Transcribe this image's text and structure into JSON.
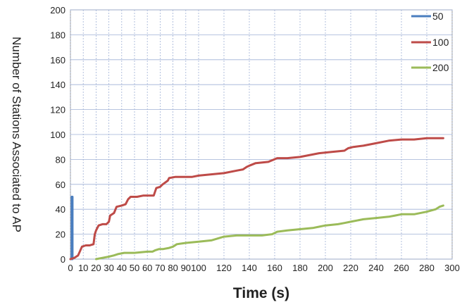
{
  "chart_data": {
    "type": "line",
    "title": "",
    "xlabel": "Time (s)",
    "ylabel": "Number of Stations Associated to AP",
    "xlim": [
      0,
      300
    ],
    "ylim": [
      0,
      200
    ],
    "xticks": [
      0,
      10,
      20,
      30,
      40,
      50,
      60,
      70,
      80,
      90,
      100,
      120,
      140,
      160,
      180,
      200,
      220,
      240,
      260,
      280,
      300
    ],
    "xtick_labels": [
      "0",
      "10",
      "20",
      "30",
      "40",
      "50",
      "60",
      "70",
      "80",
      "90",
      "100",
      "120",
      "140",
      "160",
      "180",
      "200",
      "220",
      "240",
      "260",
      "280",
      "300"
    ],
    "yticks": [
      0,
      20,
      40,
      60,
      80,
      100,
      120,
      140,
      160,
      180,
      200
    ],
    "ytick_labels": [
      "0",
      "20",
      "40",
      "60",
      "80",
      "100",
      "120",
      "140",
      "160",
      "180",
      "200"
    ],
    "grid": true,
    "legend_position": "top-right",
    "series": [
      {
        "name": "50",
        "color": "#4a7ebf",
        "points": [
          [
            0,
            0
          ],
          [
            1,
            0
          ],
          [
            1,
            50
          ],
          [
            1.6,
            50
          ],
          [
            1.6,
            0
          ]
        ]
      },
      {
        "name": "100",
        "color": "#be4b48",
        "points": [
          [
            0,
            0
          ],
          [
            3,
            1
          ],
          [
            6,
            3
          ],
          [
            9,
            10
          ],
          [
            12,
            11
          ],
          [
            15,
            11
          ],
          [
            18,
            12
          ],
          [
            19,
            20
          ],
          [
            20,
            23
          ],
          [
            22,
            27
          ],
          [
            25,
            28
          ],
          [
            28,
            28
          ],
          [
            30,
            30
          ],
          [
            31,
            35
          ],
          [
            34,
            37
          ],
          [
            36,
            42
          ],
          [
            40,
            43
          ],
          [
            43,
            44
          ],
          [
            45,
            48
          ],
          [
            47,
            50
          ],
          [
            52,
            50
          ],
          [
            57,
            51
          ],
          [
            63,
            51
          ],
          [
            65,
            51
          ],
          [
            67,
            57
          ],
          [
            70,
            58
          ],
          [
            72,
            60
          ],
          [
            76,
            63
          ],
          [
            77,
            65
          ],
          [
            82,
            66
          ],
          [
            88,
            66
          ],
          [
            95,
            66
          ],
          [
            100,
            67
          ],
          [
            110,
            68
          ],
          [
            120,
            69
          ],
          [
            130,
            71
          ],
          [
            135,
            72
          ],
          [
            138,
            74
          ],
          [
            140,
            75
          ],
          [
            145,
            77
          ],
          [
            155,
            78
          ],
          [
            162,
            81
          ],
          [
            170,
            81
          ],
          [
            180,
            82
          ],
          [
            185,
            83
          ],
          [
            195,
            85
          ],
          [
            205,
            86
          ],
          [
            215,
            87
          ],
          [
            218,
            89
          ],
          [
            222,
            90
          ],
          [
            230,
            91
          ],
          [
            240,
            93
          ],
          [
            250,
            95
          ],
          [
            260,
            96
          ],
          [
            270,
            96
          ],
          [
            280,
            97
          ],
          [
            290,
            97
          ],
          [
            293,
            97
          ]
        ]
      },
      {
        "name": "200",
        "color": "#9bbb59",
        "points": [
          [
            20,
            0
          ],
          [
            25,
            1
          ],
          [
            30,
            2
          ],
          [
            34,
            3
          ],
          [
            37,
            4
          ],
          [
            42,
            5
          ],
          [
            50,
            5
          ],
          [
            60,
            6
          ],
          [
            64,
            6
          ],
          [
            66,
            7
          ],
          [
            69,
            8
          ],
          [
            72,
            8
          ],
          [
            77,
            9
          ],
          [
            80,
            10
          ],
          [
            83,
            12
          ],
          [
            90,
            13
          ],
          [
            100,
            14
          ],
          [
            110,
            15
          ],
          [
            120,
            18
          ],
          [
            130,
            19
          ],
          [
            140,
            19
          ],
          [
            150,
            19
          ],
          [
            158,
            20
          ],
          [
            162,
            22
          ],
          [
            170,
            23
          ],
          [
            180,
            24
          ],
          [
            190,
            25
          ],
          [
            195,
            26
          ],
          [
            200,
            27
          ],
          [
            210,
            28
          ],
          [
            215,
            29
          ],
          [
            220,
            30
          ],
          [
            230,
            32
          ],
          [
            240,
            33
          ],
          [
            250,
            34
          ],
          [
            255,
            35
          ],
          [
            260,
            36
          ],
          [
            270,
            36
          ],
          [
            280,
            38
          ],
          [
            287,
            40
          ],
          [
            290,
            42
          ],
          [
            293,
            43
          ]
        ]
      }
    ]
  }
}
